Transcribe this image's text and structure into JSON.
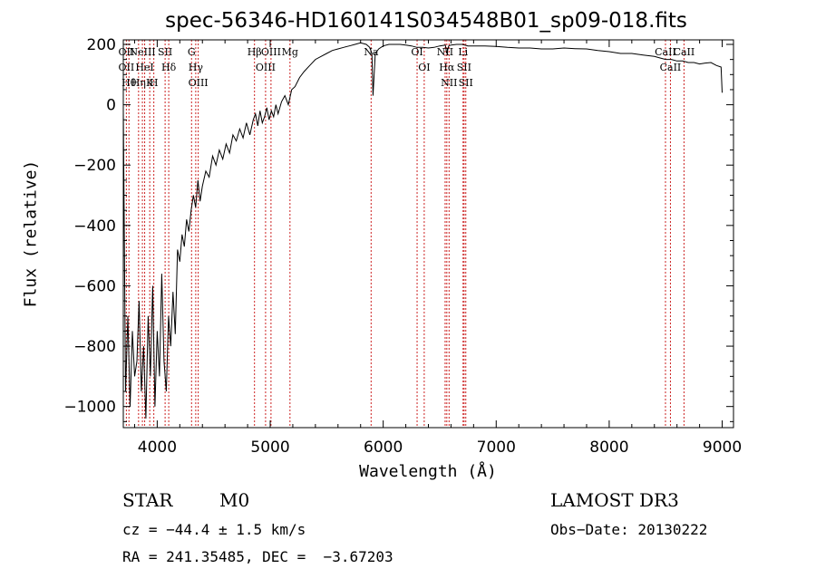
{
  "chart_data": {
    "type": "line",
    "title": "spec-56346-HD160141S034548B01_sp09-018.fits",
    "xlabel": "Wavelength (Å)",
    "ylabel": "Flux (relative)",
    "xlim": [
      3700,
      9100
    ],
    "ylim": [
      -1070,
      215
    ],
    "xticks": [
      4000,
      5000,
      6000,
      7000,
      8000,
      9000
    ],
    "yticks": [
      -1000,
      -800,
      -600,
      -400,
      -200,
      0,
      200
    ],
    "series": [
      {
        "x": [
          3700,
          3720,
          3740,
          3760,
          3780,
          3800,
          3820,
          3840,
          3860,
          3880,
          3900,
          3920,
          3940,
          3960,
          3980,
          4000,
          4020,
          4040,
          4060,
          4080,
          4100,
          4120,
          4140,
          4160,
          4180,
          4200,
          4220,
          4240,
          4260,
          4280,
          4300,
          4320,
          4340,
          4360,
          4380,
          4400,
          4430,
          4460,
          4490,
          4520,
          4550,
          4580,
          4610,
          4640,
          4670,
          4700,
          4730,
          4760,
          4790,
          4820,
          4850,
          4870,
          4890,
          4910,
          4930,
          4950,
          4970,
          4990,
          5010,
          5030,
          5050,
          5070,
          5100,
          5130,
          5160,
          5190,
          5220,
          5260,
          5300,
          5350,
          5400,
          5450,
          5500,
          5550,
          5600,
          5650,
          5700,
          5750,
          5800,
          5850,
          5880,
          5900,
          5910,
          5930,
          5960,
          6000,
          6050,
          6100,
          6150,
          6200,
          6250,
          6300,
          6350,
          6400,
          6450,
          6500,
          6550,
          6562,
          6580,
          6600,
          6650,
          6700,
          6750,
          6800,
          6900,
          7000,
          7100,
          7200,
          7300,
          7400,
          7500,
          7600,
          7700,
          7800,
          7900,
          8000,
          8100,
          8200,
          8300,
          8400,
          8450,
          8500,
          8550,
          8600,
          8650,
          8700,
          8750,
          8800,
          8850,
          8900,
          8950,
          8990,
          9000
        ],
        "y": [
          -20,
          -950,
          -700,
          -1000,
          -750,
          -900,
          -850,
          -650,
          -950,
          -800,
          -1040,
          -700,
          -900,
          -600,
          -1000,
          -750,
          -900,
          -560,
          -850,
          -950,
          -700,
          -800,
          -620,
          -760,
          -480,
          -520,
          -430,
          -470,
          -380,
          -420,
          -350,
          -300,
          -340,
          -250,
          -320,
          -270,
          -220,
          -240,
          -170,
          -200,
          -150,
          -180,
          -130,
          -160,
          -100,
          -120,
          -80,
          -110,
          -60,
          -100,
          -50,
          -30,
          -70,
          -20,
          -60,
          -40,
          -10,
          -50,
          -20,
          -40,
          0,
          -30,
          10,
          30,
          0,
          50,
          60,
          90,
          110,
          130,
          150,
          160,
          170,
          180,
          185,
          190,
          195,
          200,
          205,
          200,
          190,
          170,
          30,
          170,
          185,
          195,
          200,
          200,
          200,
          198,
          195,
          190,
          190,
          188,
          190,
          195,
          198,
          170,
          195,
          198,
          200,
          200,
          195,
          195,
          195,
          193,
          190,
          188,
          188,
          185,
          185,
          188,
          186,
          185,
          180,
          176,
          170,
          170,
          165,
          160,
          155,
          150,
          150,
          145,
          145,
          140,
          140,
          135,
          138,
          140,
          130,
          125,
          40
        ]
      }
    ],
    "lines": [
      {
        "x": 3727,
        "labels": [
          "OII",
          "OII"
        ]
      },
      {
        "x": 3750,
        "labels": [
          "Hθ"
        ]
      },
      {
        "x": 3835,
        "labels": [
          "Hη"
        ]
      },
      {
        "x": 3869,
        "labels": [
          "NeIII"
        ]
      },
      {
        "x": 3889,
        "labels": [
          "HeI"
        ]
      },
      {
        "x": 3934,
        "labels": [
          "K"
        ]
      },
      {
        "x": 3970,
        "labels": [
          "H"
        ]
      },
      {
        "x": 4070,
        "labels": [
          "SII"
        ]
      },
      {
        "x": 4102,
        "labels": [
          "Hδ"
        ]
      },
      {
        "x": 4304,
        "labels": [
          "G"
        ]
      },
      {
        "x": 4341,
        "labels": [
          "Hγ"
        ]
      },
      {
        "x": 4363,
        "labels": [
          "OIII"
        ]
      },
      {
        "x": 4861,
        "labels": [
          "Hβ"
        ]
      },
      {
        "x": 4959,
        "labels": [
          "OIII"
        ]
      },
      {
        "x": 5007,
        "labels": [
          "OIII"
        ]
      },
      {
        "x": 5175,
        "labels": [
          "Mg"
        ]
      },
      {
        "x": 5893,
        "labels": [
          "Na"
        ]
      },
      {
        "x": 6300,
        "labels": [
          "OI"
        ]
      },
      {
        "x": 6363,
        "labels": [
          "OI"
        ]
      },
      {
        "x": 6548,
        "labels": [
          "NII"
        ]
      },
      {
        "x": 6563,
        "labels": [
          "Hα"
        ]
      },
      {
        "x": 6583,
        "labels": [
          "NII"
        ]
      },
      {
        "x": 6707,
        "labels": [
          "Li"
        ]
      },
      {
        "x": 6716,
        "labels": [
          "SII"
        ]
      },
      {
        "x": 6731,
        "labels": [
          "SII"
        ]
      },
      {
        "x": 8498,
        "labels": [
          "CaII"
        ]
      },
      {
        "x": 8542,
        "labels": [
          "CaII"
        ]
      },
      {
        "x": 8662,
        "labels": [
          "CaII"
        ]
      }
    ]
  },
  "info": {
    "class_label": "STAR",
    "subclass": "M0",
    "survey": "LAMOST DR3",
    "cz": "cz = −44.4 ± 1.5 km/s",
    "obs_date": "Obs−Date: 20130222",
    "radec": "RA = 241.35485, DEC =  −3.67203"
  },
  "colors": {
    "spectrum": "#000000",
    "line_marker": "#cc2222"
  }
}
